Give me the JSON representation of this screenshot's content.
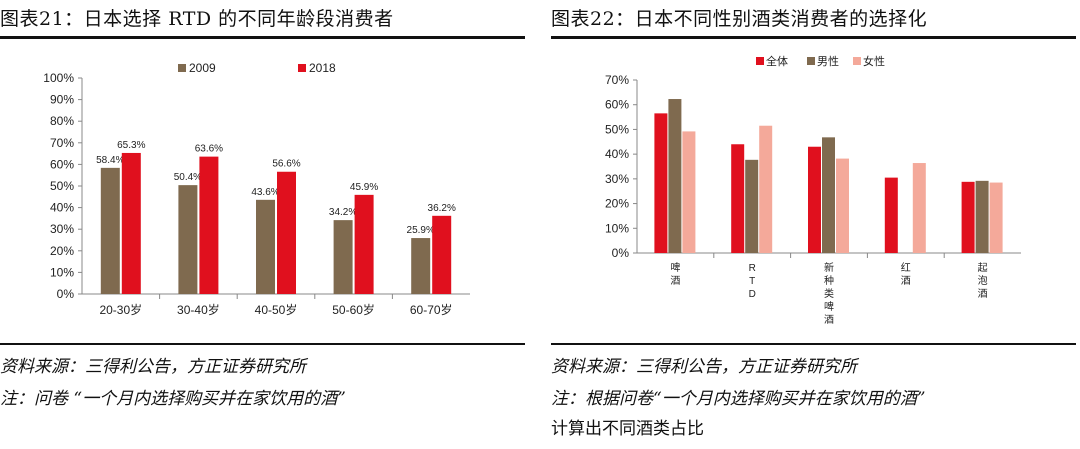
{
  "left": {
    "title": "图表21：日本选择 RTD 的不同年龄段消费者",
    "source": "资料来源：三得利公告，方正证券研究所",
    "note": "注：问卷 “一个月内选择购买并在家饮用的酒”"
  },
  "right": {
    "title": "图表22：日本不同性别酒类消费者的选择化",
    "source": "资料来源：三得利公告，方正证券研究所",
    "note_line1": "注：根据问卷“一个月内选择购买并在家饮用的酒”",
    "note_line2": "计算出不同酒类占比"
  },
  "chart_data": [
    {
      "type": "bar",
      "title": "",
      "categories": [
        "20-30岁",
        "30-40岁",
        "40-50岁",
        "50-60岁",
        "60-70岁"
      ],
      "series": [
        {
          "name": "2009",
          "values": [
            58.4,
            50.4,
            43.6,
            34.2,
            25.9
          ],
          "labels": [
            "58.4%",
            "50.4%",
            "43.6%",
            "34.2%",
            "25.9%"
          ],
          "color": "#7f6a4f"
        },
        {
          "name": "2018",
          "values": [
            65.3,
            63.6,
            56.6,
            45.9,
            36.2
          ],
          "labels": [
            "65.3%",
            "63.6%",
            "56.6%",
            "45.9%",
            "36.2%"
          ],
          "color": "#e0101e"
        }
      ],
      "yticks": [
        "0%",
        "10%",
        "20%",
        "30%",
        "40%",
        "50%",
        "60%",
        "70%",
        "80%",
        "90%",
        "100%"
      ],
      "ylim": [
        0,
        100
      ],
      "xlabel": "",
      "ylabel": "",
      "legend_position": "top-center",
      "grid": false
    },
    {
      "type": "bar",
      "title": "",
      "categories": [
        "啤酒",
        "RTD",
        "新种类啤酒",
        "红酒",
        "起泡酒"
      ],
      "series": [
        {
          "name": "全体",
          "values": [
            56.5,
            44,
            43,
            30.5,
            28.8
          ],
          "color": "#e0101e"
        },
        {
          "name": "男性",
          "values": [
            62.3,
            37.7,
            46.8,
            null,
            29.2
          ],
          "color": "#7f6a4f"
        },
        {
          "name": "女性",
          "values": [
            49.2,
            51.5,
            38.2,
            36.4,
            28.5
          ],
          "color": "#f4a99a"
        }
      ],
      "yticks": [
        "0%",
        "10%",
        "20%",
        "30%",
        "40%",
        "50%",
        "60%",
        "70%"
      ],
      "ylim": [
        0,
        70
      ],
      "xlabel": "",
      "ylabel": "",
      "legend_position": "top-center",
      "grid": false
    }
  ]
}
